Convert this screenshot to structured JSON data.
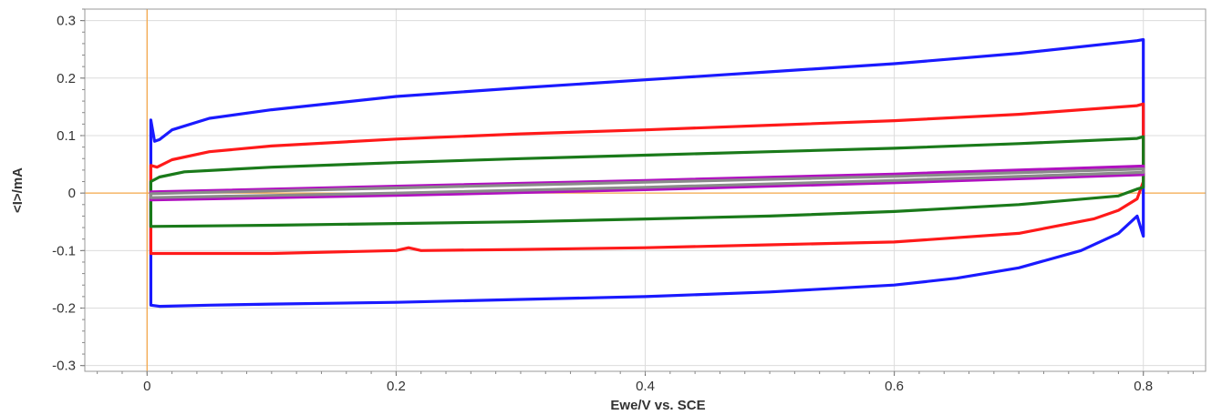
{
  "chart_data": {
    "type": "line",
    "title": "",
    "xlabel": "Ewe/V vs. SCE",
    "ylabel": "<I>/mA",
    "xlim": [
      -0.05,
      0.85
    ],
    "ylim": [
      -0.31,
      0.32
    ],
    "x_ticks": [
      0,
      0.2,
      0.4,
      0.6,
      0.8
    ],
    "x_tick_labels": [
      "0",
      "0.2",
      "0.4",
      "0.6",
      "0.8"
    ],
    "y_ticks": [
      -0.3,
      -0.2,
      -0.1,
      0,
      0.1,
      0.2,
      0.3
    ],
    "y_tick_labels": [
      "-0.3",
      "-0.2",
      "-0.1",
      "0",
      "0.1",
      "0.2",
      "0.3"
    ],
    "grid": true,
    "legend": "none",
    "reference_lines": {
      "x": 0,
      "y": 0,
      "color": "#f5a84a"
    },
    "series": [
      {
        "color": "#1a1aff",
        "x": [
          0.003,
          0.006,
          0.01,
          0.02,
          0.05,
          0.1,
          0.2,
          0.3,
          0.4,
          0.5,
          0.6,
          0.7,
          0.795,
          0.8,
          0.8,
          0.795,
          0.78,
          0.75,
          0.7,
          0.65,
          0.6,
          0.5,
          0.4,
          0.3,
          0.2,
          0.1,
          0.05,
          0.01,
          0.003
        ],
        "y": [
          0.127,
          0.09,
          0.093,
          0.11,
          0.13,
          0.145,
          0.168,
          0.183,
          0.197,
          0.211,
          0.225,
          0.243,
          0.265,
          0.267,
          -0.075,
          -0.04,
          -0.07,
          -0.1,
          -0.13,
          -0.148,
          -0.16,
          -0.172,
          -0.18,
          -0.185,
          -0.19,
          -0.193,
          -0.195,
          -0.197,
          -0.195
        ]
      },
      {
        "color": "#ff1a1a",
        "x": [
          0.003,
          0.008,
          0.02,
          0.05,
          0.1,
          0.2,
          0.3,
          0.4,
          0.5,
          0.6,
          0.7,
          0.795,
          0.8,
          0.8,
          0.795,
          0.78,
          0.76,
          0.7,
          0.6,
          0.5,
          0.4,
          0.3,
          0.22,
          0.21,
          0.2,
          0.1,
          0.05,
          0.003
        ],
        "y": [
          0.048,
          0.045,
          0.058,
          0.072,
          0.082,
          0.094,
          0.103,
          0.11,
          0.118,
          0.126,
          0.137,
          0.152,
          0.155,
          0.02,
          -0.01,
          -0.03,
          -0.045,
          -0.07,
          -0.085,
          -0.09,
          -0.095,
          -0.098,
          -0.1,
          -0.095,
          -0.1,
          -0.105,
          -0.105,
          -0.105
        ]
      },
      {
        "color": "#1a7a1a",
        "x": [
          0.003,
          0.01,
          0.03,
          0.1,
          0.2,
          0.3,
          0.4,
          0.5,
          0.6,
          0.7,
          0.795,
          0.8,
          0.8,
          0.795,
          0.78,
          0.7,
          0.6,
          0.5,
          0.4,
          0.3,
          0.2,
          0.1,
          0.003
        ],
        "y": [
          0.02,
          0.028,
          0.037,
          0.045,
          0.053,
          0.06,
          0.066,
          0.072,
          0.078,
          0.086,
          0.095,
          0.098,
          0.01,
          0.007,
          -0.005,
          -0.02,
          -0.032,
          -0.04,
          -0.045,
          -0.05,
          -0.053,
          -0.056,
          -0.058
        ]
      },
      {
        "color": "#b010c0",
        "x": [
          0.003,
          0.2,
          0.4,
          0.6,
          0.8,
          0.8,
          0.6,
          0.4,
          0.2,
          0.003
        ],
        "y": [
          0.002,
          0.012,
          0.022,
          0.033,
          0.047,
          0.032,
          0.018,
          0.006,
          -0.004,
          -0.012
        ]
      },
      {
        "color": "#8a8a8a",
        "x": [
          0.003,
          0.2,
          0.4,
          0.6,
          0.8,
          0.8,
          0.6,
          0.4,
          0.2,
          0.003
        ],
        "y": [
          -0.001,
          0.009,
          0.019,
          0.029,
          0.042,
          0.036,
          0.022,
          0.01,
          0.0,
          -0.008
        ]
      }
    ]
  }
}
